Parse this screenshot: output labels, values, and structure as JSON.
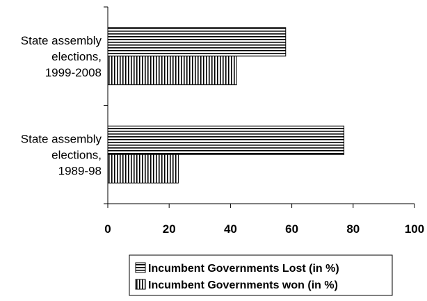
{
  "chart_data": {
    "type": "bar",
    "orientation": "horizontal",
    "categories": [
      [
        "State assembly",
        "elections,",
        "1999-2008"
      ],
      [
        "State assembly",
        "elections,",
        "1989-98"
      ]
    ],
    "series": [
      {
        "name": "Incumbent Governments Lost (in %)",
        "pattern": "horizontal-stripes",
        "values": [
          58,
          77
        ]
      },
      {
        "name": "Incumbent Governments won (in %)",
        "pattern": "vertical-stripes",
        "values": [
          42,
          23
        ]
      }
    ],
    "xlim": [
      0,
      100
    ],
    "xticks": [
      0,
      20,
      40,
      60,
      80,
      100
    ],
    "title": "",
    "xlabel": "",
    "ylabel": "",
    "grid": false,
    "legend": "bottom"
  }
}
